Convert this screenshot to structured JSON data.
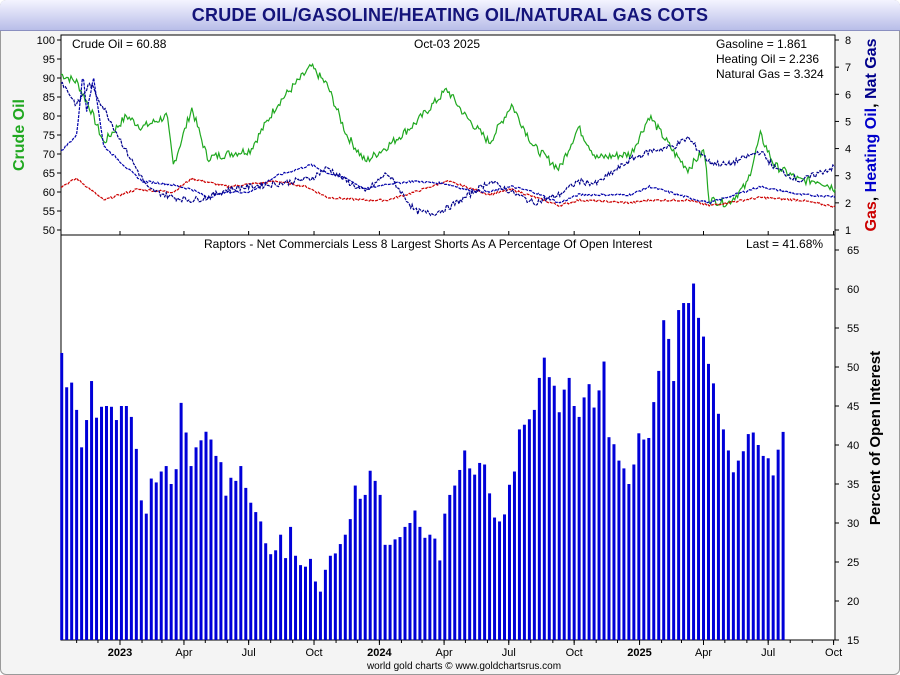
{
  "header": {
    "title": "CRUDE OIL/GASOLINE/HEATING OIL/NATURAL GAS COTS"
  },
  "top_panel": {
    "date": "Oct-03  2025",
    "crude_readout": "Crude Oil = 60.88",
    "gasoline_readout": "Gasoline = 1.861",
    "heating_readout": "Heating Oil = 2.236",
    "natgas_readout": "Natural Gas = 3.324",
    "left_axis_title": "Crude Oil",
    "right_axis_title_parts": [
      "Gas",
      ", ",
      "Heating Oil",
      ", ",
      "Nat Gas"
    ],
    "colors": {
      "crude": "#1fa81f",
      "gasoline": "#cc0000",
      "heating": "#0000aa",
      "natgas": "#00008b"
    }
  },
  "bottom_panel": {
    "subtitle": "Raptors - Net Commercials Less 8 Largest Shorts As A Percentage Of Open Interest",
    "last_readout": "Last = 41.68%",
    "right_axis_title": "Percent of Open Interest",
    "bar_color": "#0000d8"
  },
  "x_axis": {
    "labels": [
      "2023",
      "Apr",
      "Jul",
      "Oct",
      "2024",
      "Apr",
      "Jul",
      "Oct",
      "2025",
      "Apr",
      "Jul",
      "Oct"
    ],
    "bold": [
      "2023",
      "2024",
      "2025"
    ]
  },
  "footer": {
    "credit": "world gold charts © www.goldchartsrus.com"
  },
  "chart_data": [
    {
      "type": "line",
      "title": "",
      "y_left": {
        "label": "Crude Oil",
        "range": [
          50,
          100
        ],
        "ticks": [
          50,
          55,
          60,
          65,
          70,
          75,
          80,
          85,
          90,
          95,
          100
        ]
      },
      "y_right": {
        "label": "Gas, Heating Oil, Nat Gas",
        "range": [
          1,
          8
        ],
        "ticks": [
          1,
          2,
          3,
          4,
          5,
          6,
          7,
          8
        ]
      },
      "x_start": "2022-10-10",
      "x_end": "2025-10-03",
      "series": [
        {
          "name": "Crude Oil",
          "axis": "left",
          "color": "#1fa81f",
          "points": [
            [
              "2022-10-10",
              91
            ],
            [
              "2022-11-01",
              89
            ],
            [
              "2022-11-20",
              82
            ],
            [
              "2022-12-09",
              73
            ],
            [
              "2023-01-10",
              80
            ],
            [
              "2023-02-01",
              77
            ],
            [
              "2023-03-08",
              80
            ],
            [
              "2023-03-17",
              67
            ],
            [
              "2023-04-12",
              82
            ],
            [
              "2023-05-04",
              69
            ],
            [
              "2023-06-01",
              70
            ],
            [
              "2023-07-03",
              71
            ],
            [
              "2023-08-10",
              83
            ],
            [
              "2023-09-27",
              93
            ],
            [
              "2023-10-20",
              88
            ],
            [
              "2023-11-16",
              75
            ],
            [
              "2023-12-12",
              68
            ],
            [
              "2024-01-12",
              72
            ],
            [
              "2024-02-20",
              78
            ],
            [
              "2024-04-05",
              87
            ],
            [
              "2024-05-01",
              80
            ],
            [
              "2024-06-04",
              73
            ],
            [
              "2024-07-05",
              83
            ],
            [
              "2024-08-05",
              72
            ],
            [
              "2024-09-10",
              66
            ],
            [
              "2024-10-07",
              77
            ],
            [
              "2024-11-01",
              69
            ],
            [
              "2024-12-20",
              70
            ],
            [
              "2025-01-15",
              80
            ],
            [
              "2025-02-20",
              70
            ],
            [
              "2025-03-10",
              66
            ],
            [
              "2025-04-02",
              71
            ],
            [
              "2025-04-09",
              58
            ],
            [
              "2025-05-05",
              57
            ],
            [
              "2025-06-01",
              62
            ],
            [
              "2025-06-20",
              75
            ],
            [
              "2025-07-10",
              67
            ],
            [
              "2025-08-15",
              63
            ],
            [
              "2025-09-10",
              63
            ],
            [
              "2025-10-03",
              60.88
            ]
          ]
        },
        {
          "name": "Gasoline",
          "axis": "right",
          "color": "#cc0000",
          "points": [
            [
              "2022-10-10",
              2.6
            ],
            [
              "2022-11-01",
              2.9
            ],
            [
              "2022-12-09",
              2.1
            ],
            [
              "2023-01-25",
              2.5
            ],
            [
              "2023-03-17",
              2.4
            ],
            [
              "2023-04-12",
              2.9
            ],
            [
              "2023-06-01",
              2.6
            ],
            [
              "2023-08-10",
              2.8
            ],
            [
              "2023-09-20",
              2.6
            ],
            [
              "2023-10-20",
              2.2
            ],
            [
              "2023-12-12",
              2.1
            ],
            [
              "2024-01-12",
              2.1
            ],
            [
              "2024-02-20",
              2.4
            ],
            [
              "2024-04-05",
              2.8
            ],
            [
              "2024-05-01",
              2.6
            ],
            [
              "2024-06-04",
              2.3
            ],
            [
              "2024-07-05",
              2.5
            ],
            [
              "2024-09-10",
              1.9
            ],
            [
              "2024-10-07",
              2.1
            ],
            [
              "2024-12-20",
              2.0
            ],
            [
              "2025-01-15",
              2.1
            ],
            [
              "2025-03-10",
              2.1
            ],
            [
              "2025-04-09",
              1.9
            ],
            [
              "2025-06-20",
              2.2
            ],
            [
              "2025-08-15",
              2.1
            ],
            [
              "2025-10-03",
              1.861
            ]
          ]
        },
        {
          "name": "Heating Oil",
          "axis": "right",
          "color": "#0000aa",
          "points": [
            [
              "2022-10-10",
              3.9
            ],
            [
              "2022-11-01",
              4.5
            ],
            [
              "2022-11-10",
              6.8
            ],
            [
              "2022-11-15",
              5.4
            ],
            [
              "2022-11-25",
              6.6
            ],
            [
              "2022-12-09",
              4.1
            ],
            [
              "2023-01-10",
              3.3
            ],
            [
              "2023-02-01",
              2.8
            ],
            [
              "2023-03-08",
              2.7
            ],
            [
              "2023-04-12",
              2.5
            ],
            [
              "2023-05-04",
              2.2
            ],
            [
              "2023-06-01",
              2.4
            ],
            [
              "2023-07-03",
              2.4
            ],
            [
              "2023-08-10",
              3.0
            ],
            [
              "2023-09-27",
              3.4
            ],
            [
              "2023-10-20",
              3.1
            ],
            [
              "2023-11-16",
              2.9
            ],
            [
              "2023-12-12",
              2.5
            ],
            [
              "2024-01-12",
              2.7
            ],
            [
              "2024-02-20",
              2.8
            ],
            [
              "2024-04-05",
              2.7
            ],
            [
              "2024-05-01",
              2.5
            ],
            [
              "2024-06-04",
              2.4
            ],
            [
              "2024-07-05",
              2.6
            ],
            [
              "2024-08-05",
              2.4
            ],
            [
              "2024-09-10",
              2.0
            ],
            [
              "2024-10-07",
              2.3
            ],
            [
              "2024-12-20",
              2.3
            ],
            [
              "2025-01-15",
              2.6
            ],
            [
              "2025-03-10",
              2.2
            ],
            [
              "2025-04-09",
              2.0
            ],
            [
              "2025-06-20",
              2.6
            ],
            [
              "2025-08-15",
              2.3
            ],
            [
              "2025-10-03",
              2.236
            ]
          ]
        },
        {
          "name": "Natural Gas",
          "axis": "right",
          "color": "#00008b",
          "points": [
            [
              "2022-10-10",
              6.5
            ],
            [
              "2022-11-01",
              5.6
            ],
            [
              "2022-11-20",
              6.4
            ],
            [
              "2022-12-09",
              5.5
            ],
            [
              "2023-01-10",
              3.9
            ],
            [
              "2023-02-10",
              2.5
            ],
            [
              "2023-03-17",
              2.2
            ],
            [
              "2023-04-12",
              2.1
            ],
            [
              "2023-05-04",
              2.2
            ],
            [
              "2023-06-01",
              2.5
            ],
            [
              "2023-07-03",
              2.6
            ],
            [
              "2023-08-10",
              2.7
            ],
            [
              "2023-09-27",
              2.9
            ],
            [
              "2023-10-20",
              3.3
            ],
            [
              "2023-11-16",
              2.8
            ],
            [
              "2023-12-12",
              2.4
            ],
            [
              "2024-01-12",
              3.1
            ],
            [
              "2024-02-20",
              1.7
            ],
            [
              "2024-03-15",
              1.6
            ],
            [
              "2024-04-05",
              1.8
            ],
            [
              "2024-05-01",
              2.2
            ],
            [
              "2024-06-04",
              2.8
            ],
            [
              "2024-07-05",
              2.4
            ],
            [
              "2024-08-05",
              2.0
            ],
            [
              "2024-09-10",
              2.3
            ],
            [
              "2024-10-07",
              2.8
            ],
            [
              "2024-11-01",
              2.7
            ],
            [
              "2024-12-20",
              3.6
            ],
            [
              "2025-01-15",
              3.9
            ],
            [
              "2025-02-20",
              4.1
            ],
            [
              "2025-03-10",
              4.4
            ],
            [
              "2025-04-09",
              3.5
            ],
            [
              "2025-05-05",
              3.4
            ],
            [
              "2025-06-01",
              3.7
            ],
            [
              "2025-06-20",
              3.9
            ],
            [
              "2025-07-10",
              3.3
            ],
            [
              "2025-08-15",
              2.8
            ],
            [
              "2025-09-10",
              3.1
            ],
            [
              "2025-10-03",
              3.324
            ]
          ]
        }
      ]
    },
    {
      "type": "bar",
      "title": "Raptors - Net Commercials Less 8 Largest Shorts As A Percentage Of Open Interest",
      "ylabel": "Percent of Open Interest",
      "ylim": [
        15,
        65
      ],
      "y_ticks": [
        15,
        20,
        25,
        30,
        35,
        40,
        45,
        50,
        55,
        60,
        65
      ],
      "x_start": "2022-10-11",
      "interval_days": 7,
      "values": [
        51.8,
        47.4,
        48.0,
        44.5,
        39.7,
        43.2,
        48.2,
        43.5,
        44.9,
        45.0,
        44.9,
        43.2,
        45.0,
        45.0,
        43.6,
        39.5,
        32.9,
        31.2,
        35.7,
        35.2,
        36.6,
        37.3,
        35.0,
        36.9,
        45.4,
        41.6,
        37.3,
        39.7,
        40.6,
        41.7,
        40.7,
        38.6,
        37.8,
        33.5,
        35.8,
        35.4,
        37.3,
        34.5,
        32.6,
        31.4,
        30.2,
        27.4,
        26.0,
        26.5,
        28.5,
        25.5,
        29.5,
        25.8,
        24.6,
        24.4,
        25.4,
        22.5,
        21.2,
        24.0,
        25.8,
        26.1,
        27.3,
        28.5,
        30.5,
        34.8,
        33.1,
        33.6,
        36.7,
        35.4,
        33.6,
        27.2,
        27.2,
        27.9,
        28.2,
        29.5,
        30.0,
        31.6,
        29.5,
        28.1,
        28.5,
        28.0,
        25.2,
        31.2,
        33.6,
        34.8,
        36.8,
        39.3,
        37.0,
        36.2,
        37.7,
        37.5,
        33.8,
        30.7,
        30.2,
        31.1,
        34.9,
        36.6,
        42.0,
        42.6,
        43.3,
        44.5,
        48.6,
        51.2,
        48.7,
        47.6,
        44.2,
        47.1,
        48.6,
        45.0,
        43.6,
        46.1,
        47.8,
        44.8,
        47.0,
        50.7,
        41.0,
        40.1,
        38.0,
        37.0,
        35.0,
        37.5,
        41.5,
        40.7,
        40.9,
        45.5,
        49.5,
        56.0,
        53.6,
        48.2,
        57.3,
        58.2,
        58.2,
        60.7,
        56.3,
        53.9,
        50.4,
        47.9,
        44.0,
        42.0,
        39.3,
        36.5,
        38.0,
        39.2,
        41.4,
        41.6,
        40.0,
        38.6,
        38.3,
        36.1,
        39.4,
        41.68
      ]
    }
  ]
}
